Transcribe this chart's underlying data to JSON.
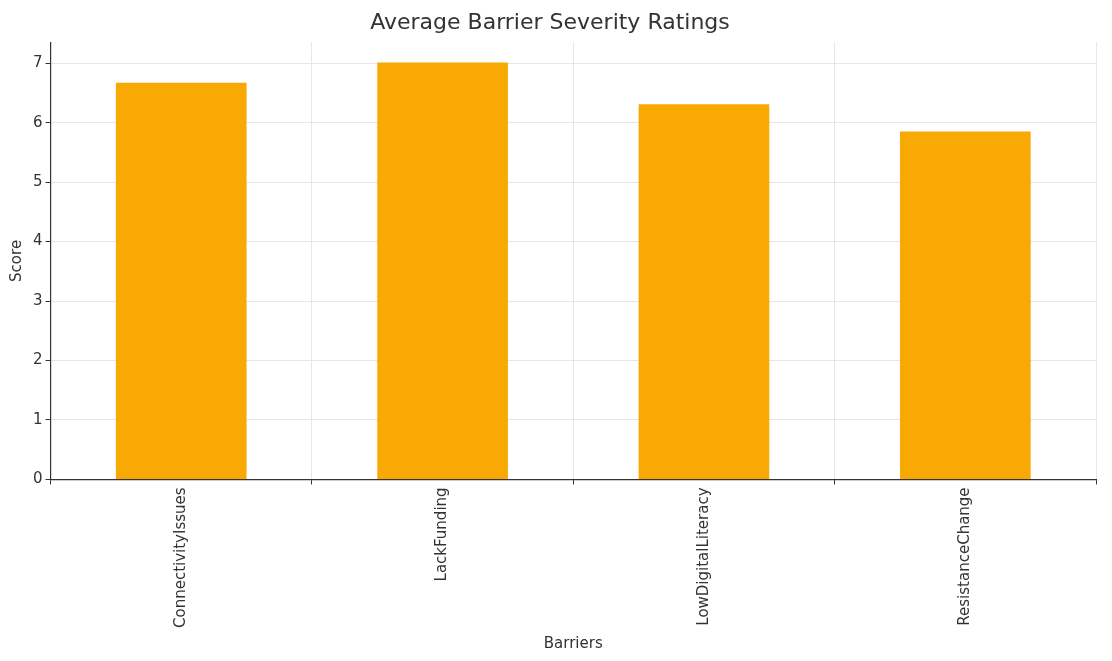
{
  "chart_data": {
    "type": "bar",
    "title": "Average Barrier Severity Ratings",
    "xlabel": "Barriers",
    "ylabel": "Score",
    "categories": [
      "ConnectivityIssues",
      "LackFunding",
      "LowDigitalLiteracy",
      "ResistanceChange"
    ],
    "values": [
      6.67,
      7.01,
      6.31,
      5.85
    ],
    "color": "#f8a904",
    "ylim": [
      0,
      7.35
    ],
    "yticks": [
      0,
      1,
      2,
      3,
      4,
      5,
      6,
      7
    ],
    "grid": true
  }
}
